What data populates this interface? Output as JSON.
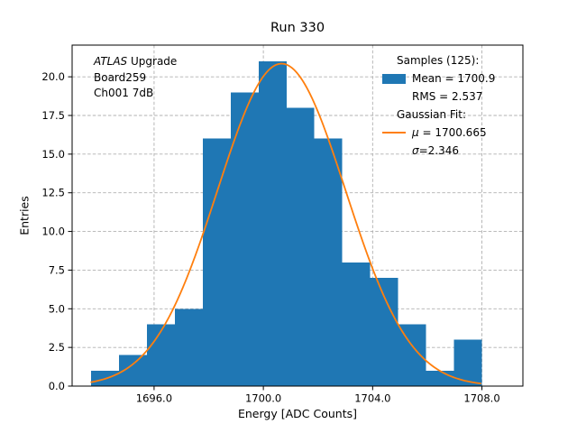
{
  "figure": {
    "title": "Run 330",
    "xlabel": "Energy [ADC Counts]",
    "ylabel": "Entries"
  },
  "annotation": {
    "brand": "ATLAS",
    "brand_rest": " Upgrade",
    "line2": "Board259",
    "line3": "Ch001 7dB"
  },
  "legend": {
    "samples_header": "Samples (125):",
    "mean_label": "Mean = 1700.9",
    "rms_label": "RMS = 2.537",
    "fit_header": "Gaussian Fit:",
    "mu_symbol": "μ",
    "mu_rest": " = 1700.665",
    "sigma_symbol": "σ",
    "sigma_rest": "=2.346"
  },
  "colors": {
    "histogram": "#1f77b4",
    "fit_line": "#ff7f0e",
    "grid": "#b0b0b0",
    "axes": "#000000"
  },
  "chart_data": {
    "type": "bar",
    "subtype": "histogram-with-gaussian-fit",
    "title": "Run 330",
    "xlabel": "Energy [ADC Counts]",
    "ylabel": "Entries",
    "xlim": [
      1693.0,
      1709.5
    ],
    "ylim": [
      0,
      22.05
    ],
    "grid": true,
    "grid_style": "dashed",
    "legend_position": "upper right",
    "xticks": [
      1696.0,
      1700.0,
      1704.0,
      1708.0
    ],
    "xtick_labels": [
      "1696.0",
      "1700.0",
      "1704.0",
      "1708.0"
    ],
    "yticks": [
      0,
      2.5,
      5,
      7.5,
      10,
      12.5,
      15,
      17.5,
      20
    ],
    "ytick_labels": [
      "0.0",
      "2.5",
      "5.0",
      "7.5",
      "10.0",
      "12.5",
      "15.0",
      "17.5",
      "20.0"
    ],
    "histogram": {
      "bin_start": 1693.7,
      "bin_width": 1.021,
      "counts": [
        1,
        2,
        4,
        5,
        16,
        19,
        21,
        18,
        16,
        8,
        7,
        4,
        1,
        3
      ],
      "n_samples": 125,
      "mean": 1700.9,
      "rms": 2.537
    },
    "gaussian_fit": {
      "mu": 1700.665,
      "sigma": 2.346,
      "amplitude": 20.85,
      "x_start": 1693.7,
      "x_end": 1707.994
    }
  }
}
